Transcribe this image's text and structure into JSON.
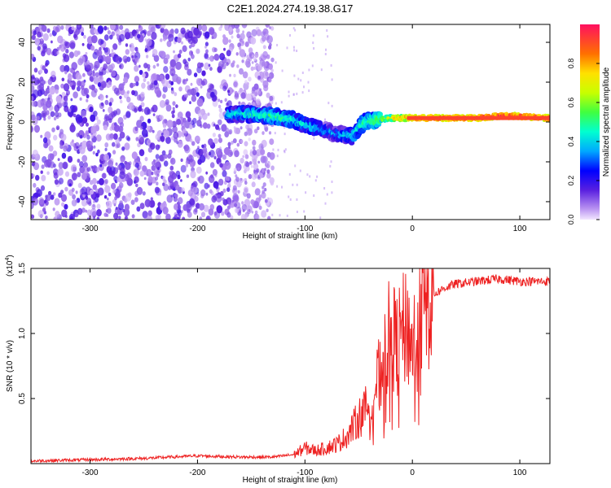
{
  "title": "C2E1.2024.274.19.38.G17",
  "chart_data": [
    {
      "type": "heatmap",
      "xlabel": "Height of straight line (km)",
      "ylabel": "Frequency (Hz)",
      "xlim": [
        -355,
        128
      ],
      "ylim": [
        -49,
        49
      ],
      "xticks": [
        -300,
        -200,
        -100,
        0,
        100
      ],
      "yticks": [
        -40,
        -20,
        0,
        20,
        40
      ],
      "ytick_labels": [
        "-40",
        "-20",
        "0",
        "20",
        "40"
      ],
      "colorbar": {
        "label": "Normalized spectral amplitude",
        "range": [
          0,
          1
        ],
        "ticks": [
          "0.0",
          "0.2",
          "0.4",
          "0.6",
          "0.8"
        ]
      },
      "ridge": {
        "x": [
          -170,
          -150,
          -130,
          -110,
          -90,
          -70,
          -55,
          -45,
          -35,
          -20,
          0,
          20,
          60,
          80,
          95,
          128
        ],
        "freq": [
          4,
          4,
          3,
          1,
          -3,
          -6,
          -7,
          0,
          1,
          2,
          2,
          2,
          2,
          3,
          3,
          2
        ],
        "amplitude": [
          0.4,
          0.45,
          0.5,
          0.45,
          0.4,
          0.35,
          0.4,
          0.5,
          0.55,
          0.75,
          0.9,
          0.95,
          0.95,
          0.95,
          0.95,
          0.95
        ]
      },
      "noise_region_x": [
        -355,
        -140
      ]
    },
    {
      "type": "line",
      "xlabel": "Height of straight line (km)",
      "ylabel": "SNR (10 * v/v)",
      "scale_label": "(x10",
      "scale_exp": "4",
      "xlim": [
        -355,
        128
      ],
      "ylim": [
        0,
        1.5
      ],
      "xticks": [
        -300,
        -200,
        -100,
        0,
        100
      ],
      "yticks": [
        "0.5",
        "1.0",
        "1.5"
      ],
      "series": [
        {
          "color": "#ee2222",
          "x": [
            -355,
            -300,
            -250,
            -200,
            -160,
            -130,
            -110,
            -100,
            -90,
            -80,
            -70,
            -60,
            -50,
            -40,
            -30,
            -25,
            -20,
            -15,
            -10,
            -5,
            0,
            5,
            10,
            20,
            30,
            40,
            60,
            80,
            100,
            128
          ],
          "y": [
            0.02,
            0.03,
            0.04,
            0.06,
            0.05,
            0.05,
            0.07,
            0.12,
            0.1,
            0.12,
            0.15,
            0.22,
            0.35,
            0.45,
            0.7,
            0.85,
            1.05,
            0.9,
            1.0,
            1.05,
            0.9,
            1.1,
            1.2,
            1.3,
            1.35,
            1.38,
            1.4,
            1.42,
            1.4,
            1.4
          ]
        }
      ]
    }
  ]
}
